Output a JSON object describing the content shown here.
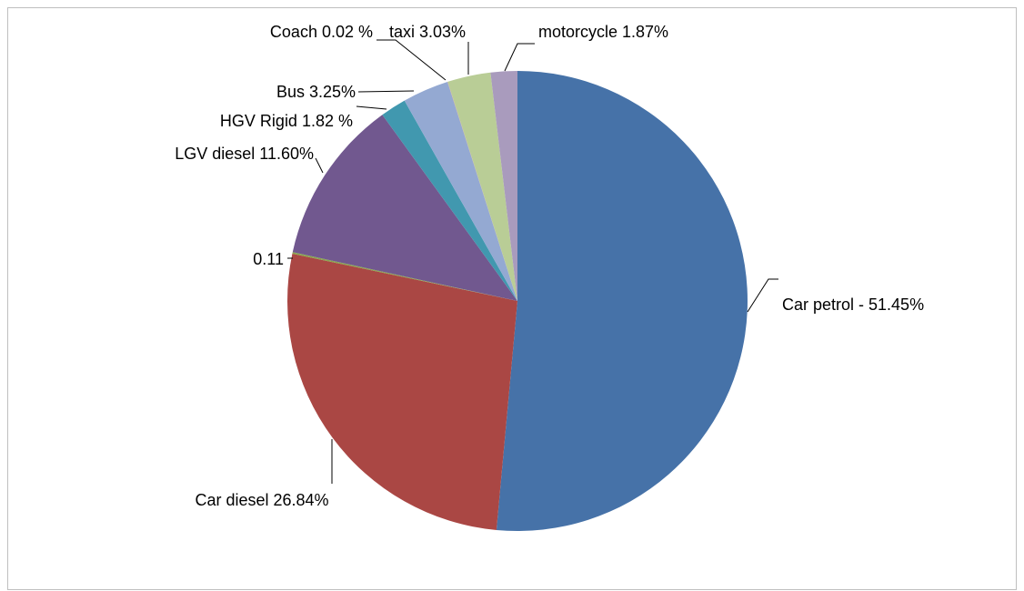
{
  "chart_data": {
    "type": "pie",
    "values": [
      51.45,
      26.84,
      0.11,
      11.6,
      1.82,
      3.25,
      0.02,
      3.03,
      1.87
    ],
    "value_labels": [
      "Car petrol - 51.45%",
      "Car diesel 26.84%",
      "0.11",
      "LGV diesel 11.60%",
      "HGV Rigid 1.82 %",
      "Bus 3.25%",
      "Coach 0.02 %",
      "taxi 3.03%",
      "motorcycle 1.87%"
    ],
    "colors": [
      "#4672a8",
      "#aa4744",
      "#89a54e",
      "#71588f",
      "#4198af",
      "#94a9d2",
      "#d09391",
      "#b9cd96",
      "#a99bbd"
    ]
  }
}
